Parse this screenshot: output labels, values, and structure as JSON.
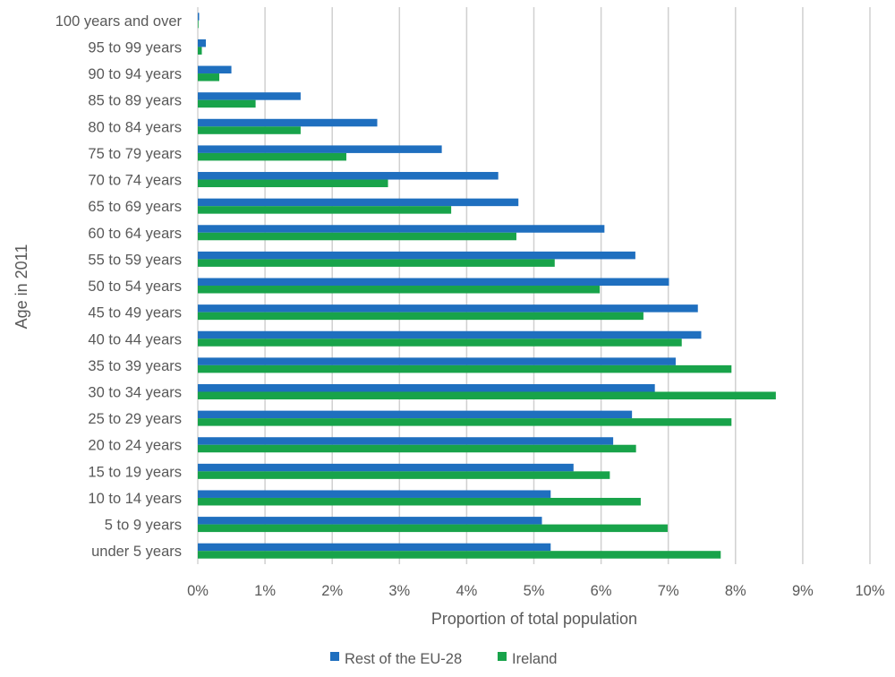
{
  "chart_data": {
    "type": "bar",
    "orientation": "horizontal",
    "title": "",
    "xlabel": "Proportion of total population",
    "ylabel": "Age in 2011",
    "xlim": [
      0,
      10
    ],
    "x_unit": "%",
    "x_ticks": [
      "0%",
      "1%",
      "2%",
      "3%",
      "4%",
      "5%",
      "6%",
      "7%",
      "8%",
      "9%",
      "10%"
    ],
    "grid": "vertical",
    "legend_position": "bottom",
    "categories": [
      "100 years and over",
      "95 to 99 years",
      "90 to 94 years",
      "85 to 89 years",
      "80 to 84 years",
      "75 to 79 years",
      "70 to 74 years",
      "65 to 69 years",
      "60 to 64 years",
      "55 to 59 years",
      "50 to 54 years",
      "45 to 49 years",
      "40 to 44 years",
      "35 to 39 years",
      "30 to 34 years",
      "25 to 29 years",
      "20 to 24 years",
      "15 to 19 years",
      "10 to 14 years",
      "5 to 9 years",
      "under 5 years"
    ],
    "series": [
      {
        "name": "Rest of the EU-28",
        "color": "#1F6FBF",
        "values": [
          0.02,
          0.12,
          0.5,
          1.53,
          2.67,
          3.63,
          4.47,
          4.77,
          6.05,
          6.51,
          7.01,
          7.44,
          7.49,
          7.11,
          6.8,
          6.46,
          6.18,
          5.59,
          5.25,
          5.12,
          5.25
        ]
      },
      {
        "name": "Ireland",
        "color": "#18A34A",
        "values": [
          0.01,
          0.06,
          0.32,
          0.86,
          1.53,
          2.21,
          2.83,
          3.77,
          4.74,
          5.31,
          5.98,
          6.63,
          7.2,
          7.94,
          8.6,
          7.94,
          6.52,
          6.13,
          6.59,
          6.99,
          7.78
        ]
      }
    ]
  }
}
